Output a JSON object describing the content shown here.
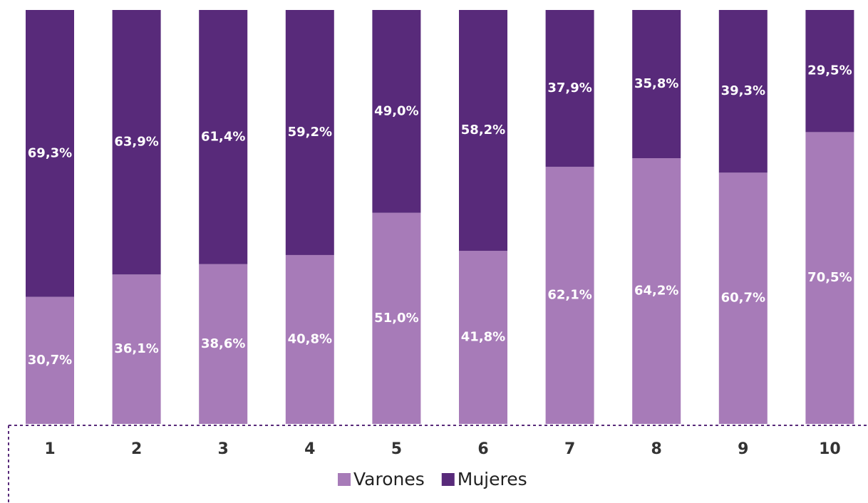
{
  "chart_data": {
    "type": "stacked_bar",
    "categories": [
      "1",
      "2",
      "3",
      "4",
      "5",
      "6",
      "7",
      "8",
      "9",
      "10"
    ],
    "series": [
      {
        "name": "Varones",
        "color": "#a77bb8",
        "values": [
          30.7,
          36.1,
          38.6,
          40.8,
          51.0,
          41.8,
          62.1,
          64.2,
          60.7,
          70.5
        ],
        "value_labels": [
          "30,7%",
          "36,1%",
          "38,6%",
          "40,8%",
          "51,0%",
          "41,8%",
          "62,1%",
          "64,2%",
          "60,7%",
          "70,5%"
        ]
      },
      {
        "name": "Mujeres",
        "color": "#582a7a",
        "values": [
          69.3,
          63.9,
          61.4,
          59.2,
          49.0,
          58.2,
          37.9,
          35.8,
          39.3,
          29.5
        ],
        "value_labels": [
          "69,3%",
          "63,9%",
          "61,4%",
          "59,2%",
          "49,0%",
          "58,2%",
          "37,9%",
          "35,8%",
          "39,3%",
          "29,5%"
        ]
      }
    ],
    "legend": "bottom"
  }
}
